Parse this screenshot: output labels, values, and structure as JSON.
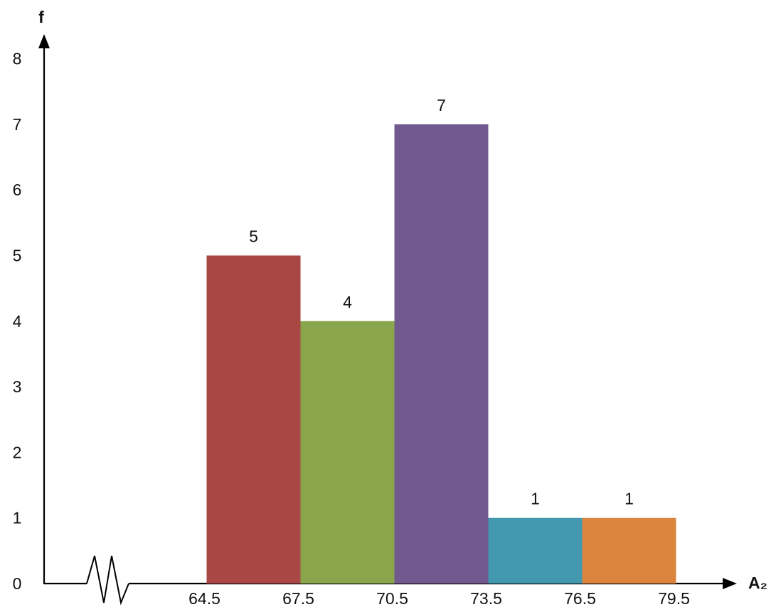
{
  "chart_data": {
    "type": "bar",
    "xlabel": "A₂",
    "ylabel": "f",
    "ylim": [
      0,
      8
    ],
    "y_ticks": [
      "0",
      "1",
      "2",
      "3",
      "4",
      "5",
      "6",
      "7",
      "8"
    ],
    "x_ticks": [
      "64.5",
      "67.5",
      "70.5",
      "73.5",
      "76.5",
      "79.5"
    ],
    "x_tick_values": [
      64.5,
      67.5,
      70.5,
      73.5,
      76.5,
      79.5
    ],
    "axis_break": true,
    "grid": false,
    "bars": [
      {
        "from": 64.5,
        "to": 67.5,
        "value": 5,
        "label": "5",
        "color": "#a84744"
      },
      {
        "from": 67.5,
        "to": 70.5,
        "value": 4,
        "label": "4",
        "color": "#8aa64d"
      },
      {
        "from": 70.5,
        "to": 73.5,
        "value": 7,
        "label": "7",
        "color": "#71588f"
      },
      {
        "from": 73.5,
        "to": 76.5,
        "value": 1,
        "label": "1",
        "color": "#4198af"
      },
      {
        "from": 76.5,
        "to": 79.5,
        "value": 1,
        "label": "1",
        "color": "#db843d"
      }
    ]
  }
}
